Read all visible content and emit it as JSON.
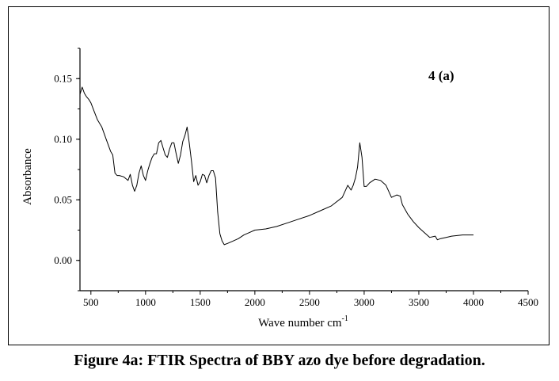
{
  "caption": "Figure 4a: FTIR Spectra of BBY azo dye before degradation.",
  "chart_data": {
    "type": "line",
    "title": "4 (a)",
    "xlabel": "Wave number cm",
    "xlabel_sup": "-1",
    "ylabel": "Absorbance",
    "xlim": [
      400,
      4500
    ],
    "ylim": [
      -0.025,
      0.175
    ],
    "xticks": [
      500,
      1000,
      1500,
      2000,
      2500,
      3000,
      3500,
      4000,
      4500
    ],
    "yticks": [
      0.0,
      0.05,
      0.1,
      0.15
    ],
    "ytick_labels": [
      "0.00",
      "0.05",
      "0.10",
      "0.15"
    ],
    "line_color": "#000000",
    "series": [
      {
        "x": [
          400,
          420,
          440,
          460,
          480,
          500,
          530,
          560,
          600,
          640,
          680,
          700,
          720,
          740,
          760,
          800,
          840,
          860,
          880,
          900,
          920,
          940,
          960,
          980,
          1000,
          1020,
          1040,
          1060,
          1080,
          1100,
          1120,
          1140,
          1160,
          1180,
          1200,
          1220,
          1240,
          1260,
          1280,
          1300,
          1320,
          1340,
          1360,
          1380,
          1400,
          1420,
          1440,
          1460,
          1480,
          1500,
          1520,
          1540,
          1560,
          1580,
          1600,
          1620,
          1640,
          1660,
          1680,
          1700,
          1720,
          1750,
          1800,
          1850,
          1900,
          1950,
          2000,
          2100,
          2200,
          2300,
          2400,
          2500,
          2600,
          2700,
          2800,
          2850,
          2880,
          2900,
          2920,
          2940,
          2960,
          2980,
          3000,
          3020,
          3050,
          3100,
          3150,
          3200,
          3250,
          3300,
          3330,
          3350,
          3400,
          3450,
          3500,
          3550,
          3600,
          3650,
          3670,
          3700,
          3750,
          3800,
          3900,
          4000
        ],
        "y": [
          0.137,
          0.143,
          0.138,
          0.135,
          0.133,
          0.13,
          0.123,
          0.116,
          0.11,
          0.1,
          0.09,
          0.087,
          0.072,
          0.07,
          0.07,
          0.069,
          0.066,
          0.071,
          0.062,
          0.057,
          0.062,
          0.072,
          0.078,
          0.07,
          0.066,
          0.074,
          0.08,
          0.085,
          0.088,
          0.088,
          0.097,
          0.099,
          0.093,
          0.087,
          0.085,
          0.092,
          0.097,
          0.097,
          0.088,
          0.08,
          0.087,
          0.098,
          0.103,
          0.11,
          0.097,
          0.082,
          0.065,
          0.07,
          0.062,
          0.065,
          0.071,
          0.07,
          0.064,
          0.07,
          0.074,
          0.074,
          0.068,
          0.04,
          0.022,
          0.016,
          0.013,
          0.014,
          0.016,
          0.018,
          0.021,
          0.023,
          0.025,
          0.026,
          0.028,
          0.031,
          0.034,
          0.037,
          0.041,
          0.045,
          0.052,
          0.062,
          0.058,
          0.062,
          0.068,
          0.077,
          0.097,
          0.085,
          0.061,
          0.061,
          0.064,
          0.067,
          0.066,
          0.062,
          0.052,
          0.054,
          0.053,
          0.046,
          0.038,
          0.032,
          0.027,
          0.023,
          0.019,
          0.02,
          0.017,
          0.018,
          0.019,
          0.02,
          0.021,
          0.021
        ]
      }
    ]
  }
}
